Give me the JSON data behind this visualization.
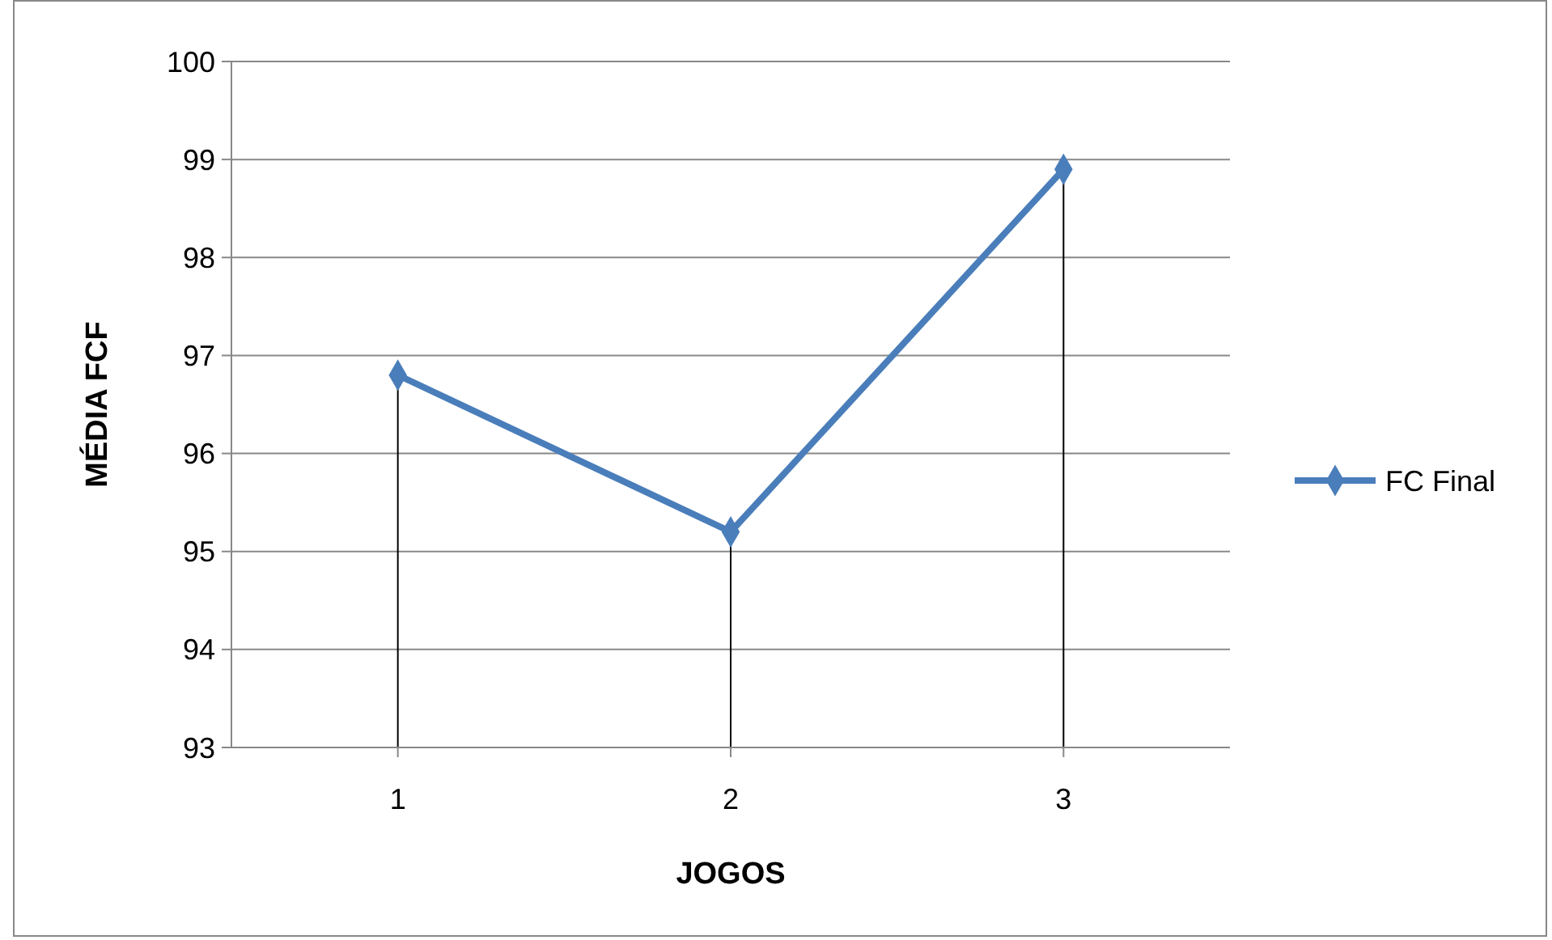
{
  "chart_data": {
    "type": "line",
    "xlabel": "JOGOS",
    "ylabel": "MÉDIA FCF",
    "categories": [
      "1",
      "2",
      "3"
    ],
    "series": [
      {
        "name": "FC Final",
        "color": "#4a7ebb",
        "values": [
          96.8,
          95.2,
          98.9
        ]
      }
    ],
    "ylim": [
      93,
      100
    ],
    "yticks": [
      93,
      94,
      95,
      96,
      97,
      98,
      99,
      100
    ],
    "grid": "y",
    "legend": "right",
    "marker": "diamond",
    "ref_lines": [
      {
        "axis": "x",
        "value": "1",
        "color": "#000000"
      },
      {
        "axis": "x",
        "value": "2",
        "color": "#000000"
      },
      {
        "axis": "x",
        "value": "3",
        "color": "#000000"
      }
    ]
  }
}
